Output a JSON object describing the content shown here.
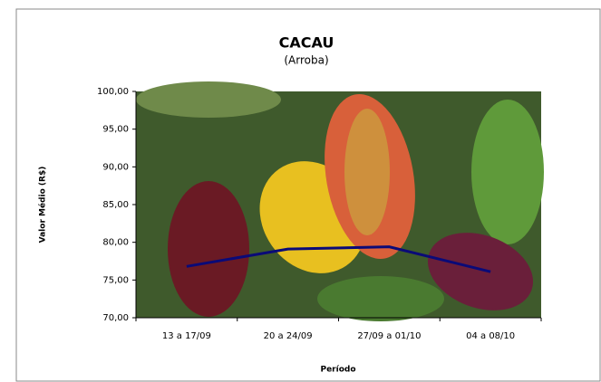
{
  "chart_data": {
    "type": "line",
    "title": "CACAU",
    "subtitle": "(Arroba)",
    "y_label": "Valor Médio (R$)",
    "x_label": "Período",
    "categories": [
      "13 a 17/09",
      "20 a 24/09",
      "27/09 a 01/10",
      "04 a 08/10"
    ],
    "values": [
      76.8,
      79.1,
      79.4,
      76.1
    ],
    "color": "#0a0a78",
    "ylim": [
      70,
      100
    ],
    "yticks": [
      {
        "value": 70,
        "label": "70,00"
      },
      {
        "value": 75,
        "label": "75,00"
      },
      {
        "value": 80,
        "label": "80,00"
      },
      {
        "value": 85,
        "label": "85,00"
      },
      {
        "value": 90,
        "label": "90,00"
      },
      {
        "value": 95,
        "label": "95,00"
      },
      {
        "value": 100,
        "label": "100,00"
      }
    ]
  }
}
